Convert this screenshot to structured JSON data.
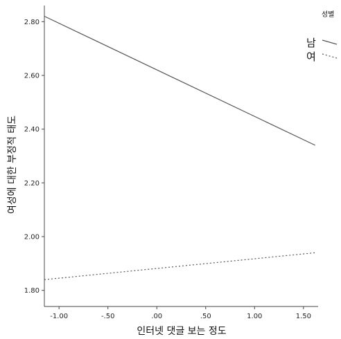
{
  "chart_data": {
    "type": "line",
    "xlabel": "인터넷 댓글 보는 정도",
    "ylabel": "여성에 대한 부정적 태도",
    "xlim": [
      -1.15,
      1.65
    ],
    "ylim": [
      1.74,
      2.86
    ],
    "x_ticks": [
      -1.0,
      -0.5,
      0.0,
      0.5,
      1.0,
      1.5
    ],
    "x_tick_labels": [
      "-1.00",
      "-.50",
      ".00",
      ".50",
      "1.00",
      "1.50"
    ],
    "y_ticks": [
      1.8,
      2.0,
      2.2,
      2.4,
      2.6,
      2.8
    ],
    "y_tick_labels": [
      "1.80",
      "2.00",
      "2.20",
      "2.40",
      "2.60",
      "2.80"
    ],
    "grid": false,
    "legend": {
      "title": "성별",
      "placement": "right"
    },
    "series": [
      {
        "name": "남",
        "style": "solid",
        "color": "#555555",
        "x": [
          -1.15,
          1.62
        ],
        "y": [
          2.82,
          2.34
        ]
      },
      {
        "name": "여",
        "style": "dotted",
        "color": "#555555",
        "x": [
          -1.15,
          1.62
        ],
        "y": [
          1.84,
          1.94
        ]
      }
    ]
  }
}
